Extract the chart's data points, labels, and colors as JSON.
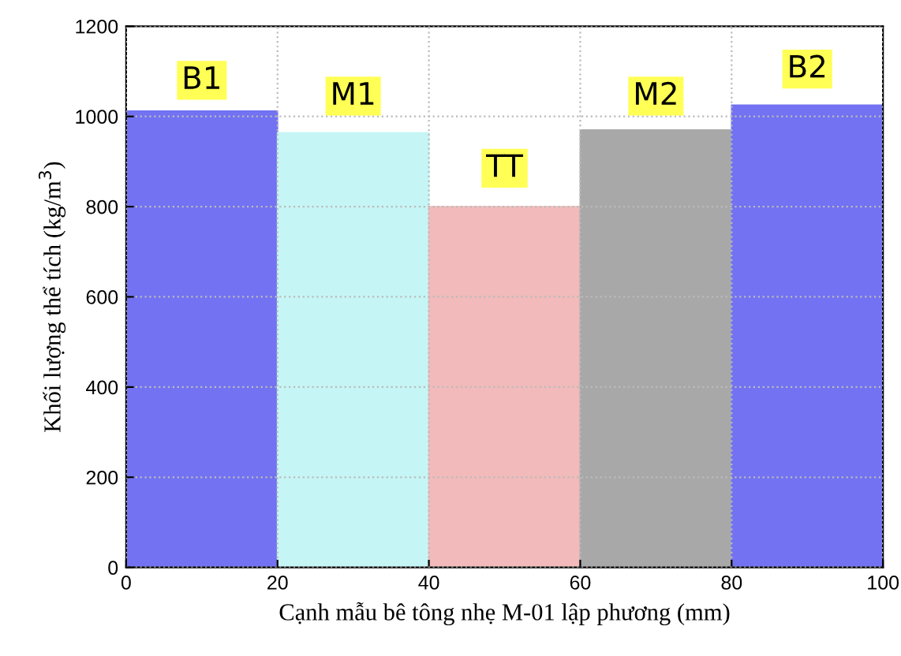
{
  "chart_data": {
    "type": "histogram",
    "xlabel": "Cạnh mẫu bê tông nhẹ M-01 lập phương (mm)",
    "ylabel": "Khối lượng thể tích (kg/m$^{3}$)",
    "bins": [
      0,
      20,
      40,
      60,
      80,
      100
    ],
    "values": [
      1012,
      964,
      800,
      970,
      1025
    ],
    "colors": [
      "#7272f2",
      "#c6f5f5",
      "#f2baba",
      "#a8a8a8",
      "#7272f2"
    ],
    "annotations": [
      {
        "text": "B1",
        "x": 10,
        "y": 1080
      },
      {
        "text": "M1",
        "x": 30,
        "y": 1045
      },
      {
        "text": "TT",
        "x": 50,
        "y": 885
      },
      {
        "text": "M2",
        "x": 70,
        "y": 1045
      },
      {
        "text": "B2",
        "x": 90,
        "y": 1105
      }
    ],
    "xlim": [
      0,
      100
    ],
    "xticks": [
      0,
      20,
      40,
      60,
      80,
      100
    ],
    "ylim": [
      0,
      1200
    ],
    "yticks": [
      0,
      200,
      400,
      600,
      800,
      1000,
      1200
    ],
    "grid": true
  }
}
